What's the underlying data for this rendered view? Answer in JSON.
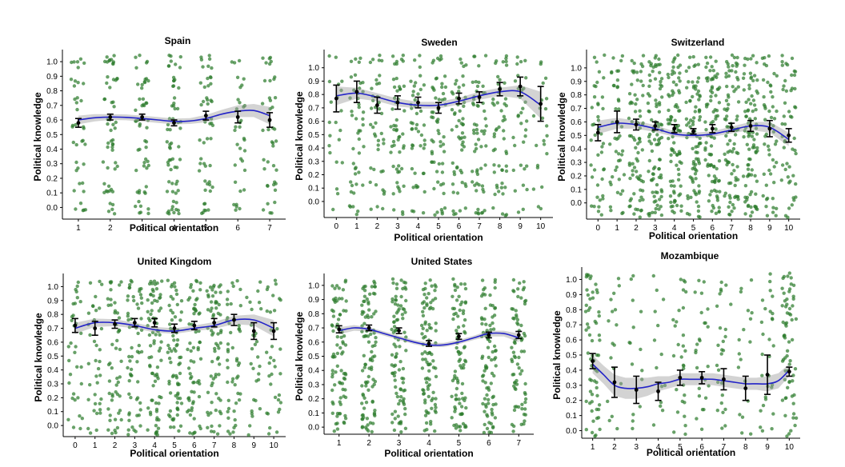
{
  "colors": {
    "point": "#2e7d2e",
    "line": "#2323c8",
    "band": "#9e9e9e",
    "errorbar": "#000000"
  },
  "chart_data": [
    {
      "type": "scatter",
      "title": "Spain",
      "xlabel": "Political orientation",
      "ylabel": "Political knowledge",
      "x_ticks": [
        1,
        2,
        3,
        4,
        5,
        6,
        7
      ],
      "y_ticks": [
        "1.0",
        "0.9",
        "0.8",
        "0.7",
        "0.6",
        "0.5",
        "0.4",
        "0.3",
        "0.2",
        "0.1",
        "0.0"
      ],
      "xlim": [
        0.5,
        7.5
      ],
      "ylim": [
        -0.08,
        1.05
      ],
      "knowledge_levels": [
        0,
        0.14,
        0.29,
        0.43,
        0.57,
        0.71,
        0.86,
        1.0
      ],
      "jitter_density": [
        0.6,
        1.0,
        0.8,
        1.0,
        0.7,
        0.5,
        0.6
      ],
      "means": [
        0.58,
        0.62,
        0.62,
        0.58,
        0.63,
        0.62,
        0.6
      ],
      "ci": [
        0.03,
        0.02,
        0.02,
        0.02,
        0.03,
        0.04,
        0.05
      ],
      "trend": {
        "x": [
          1,
          1.5,
          2,
          2.5,
          3,
          3.5,
          4,
          4.5,
          5,
          5.5,
          6,
          6.5,
          7
        ],
        "y": [
          0.6,
          0.615,
          0.62,
          0.618,
          0.61,
          0.6,
          0.59,
          0.593,
          0.61,
          0.64,
          0.66,
          0.665,
          0.63
        ],
        "band": [
          0.03,
          0.025,
          0.02,
          0.02,
          0.02,
          0.02,
          0.02,
          0.02,
          0.025,
          0.03,
          0.04,
          0.045,
          0.06
        ]
      }
    },
    {
      "type": "scatter",
      "title": "Sweden",
      "xlabel": "Political orientation",
      "ylabel": "Political knowledge",
      "x_ticks": [
        0,
        1,
        2,
        3,
        4,
        5,
        6,
        7,
        8,
        9,
        10
      ],
      "y_ticks": [
        "1.0",
        "0.9",
        "0.8",
        "0.7",
        "0.6",
        "0.5",
        "0.4",
        "0.3",
        "0.2",
        "0.1",
        "0.0"
      ],
      "xlim": [
        -0.6,
        10.6
      ],
      "ylim": [
        -0.12,
        1.1
      ],
      "knowledge_levels": [
        -0.08,
        0.1,
        0.25,
        0.4,
        0.5,
        0.6,
        0.7,
        0.8,
        0.9,
        1.05
      ],
      "jitter_density": [
        0.3,
        0.6,
        0.5,
        0.7,
        0.6,
        0.7,
        0.7,
        0.8,
        0.7,
        0.4,
        0.3
      ],
      "means": [
        0.77,
        0.82,
        0.72,
        0.74,
        0.74,
        0.7,
        0.77,
        0.78,
        0.84,
        0.86,
        0.73
      ],
      "ci": [
        0.1,
        0.08,
        0.06,
        0.05,
        0.04,
        0.04,
        0.04,
        0.04,
        0.05,
        0.07,
        0.13
      ],
      "trend": {
        "x": [
          0,
          1,
          2,
          3,
          4,
          5,
          6,
          7,
          8,
          9,
          10
        ],
        "y": [
          0.79,
          0.81,
          0.78,
          0.74,
          0.72,
          0.72,
          0.75,
          0.79,
          0.82,
          0.82,
          0.72
        ],
        "band": [
          0.07,
          0.04,
          0.03,
          0.03,
          0.025,
          0.025,
          0.025,
          0.03,
          0.03,
          0.05,
          0.1
        ]
      }
    },
    {
      "type": "scatter",
      "title": "Switzerland",
      "xlabel": "Political orientation",
      "ylabel": "Political knowledge",
      "x_ticks": [
        0,
        1,
        2,
        3,
        4,
        5,
        6,
        7,
        8,
        9,
        10
      ],
      "y_ticks": [
        "1.0",
        "0.9",
        "0.8",
        "0.7",
        "0.6",
        "0.5",
        "0.4",
        "0.3",
        "0.2",
        "0.1",
        "0.0"
      ],
      "xlim": [
        -0.6,
        10.6
      ],
      "ylim": [
        -0.12,
        1.1
      ],
      "knowledge_levels": [
        -0.06,
        0.05,
        0.17,
        0.28,
        0.4,
        0.5,
        0.6,
        0.72,
        0.83,
        0.94,
        1.05
      ],
      "jitter_density": [
        0.5,
        0.5,
        0.8,
        1.0,
        1.0,
        1.0,
        1.0,
        1.0,
        1.0,
        0.6,
        0.6
      ],
      "means": [
        0.52,
        0.6,
        0.58,
        0.57,
        0.55,
        0.53,
        0.55,
        0.56,
        0.57,
        0.55,
        0.5
      ],
      "ci": [
        0.06,
        0.08,
        0.04,
        0.03,
        0.03,
        0.02,
        0.03,
        0.03,
        0.04,
        0.06,
        0.05
      ],
      "trend": {
        "x": [
          0,
          1,
          2,
          3,
          4,
          5,
          6,
          7,
          8,
          9,
          10
        ],
        "y": [
          0.56,
          0.59,
          0.58,
          0.55,
          0.51,
          0.5,
          0.51,
          0.54,
          0.57,
          0.56,
          0.47
        ],
        "band": [
          0.05,
          0.04,
          0.03,
          0.025,
          0.02,
          0.02,
          0.02,
          0.025,
          0.03,
          0.04,
          0.05
        ]
      }
    },
    {
      "type": "scatter",
      "title": "United Kingdom",
      "xlabel": "Political orientation",
      "ylabel": "Political knowledge",
      "x_ticks": [
        0,
        1,
        2,
        3,
        4,
        5,
        6,
        7,
        8,
        9,
        10
      ],
      "y_ticks": [
        "1.0",
        "0.9",
        "0.8",
        "0.7",
        "0.6",
        "0.5",
        "0.4",
        "0.3",
        "0.2",
        "0.1",
        "0.0"
      ],
      "xlim": [
        -0.6,
        10.6
      ],
      "ylim": [
        -0.08,
        1.06
      ],
      "knowledge_levels": [
        -0.04,
        0.08,
        0.2,
        0.33,
        0.45,
        0.57,
        0.69,
        0.8,
        0.9,
        1.0
      ],
      "jitter_density": [
        0.4,
        0.5,
        0.7,
        0.8,
        0.9,
        1.0,
        0.8,
        0.8,
        0.6,
        0.4,
        0.4
      ],
      "means": [
        0.72,
        0.7,
        0.73,
        0.74,
        0.74,
        0.7,
        0.72,
        0.74,
        0.76,
        0.68,
        0.68
      ],
      "ci": [
        0.05,
        0.05,
        0.03,
        0.03,
        0.03,
        0.03,
        0.03,
        0.03,
        0.04,
        0.06,
        0.06
      ],
      "trend": {
        "x": [
          0,
          1,
          2,
          3,
          4,
          5,
          6,
          7,
          8,
          9,
          10
        ],
        "y": [
          0.7,
          0.74,
          0.74,
          0.72,
          0.69,
          0.68,
          0.7,
          0.72,
          0.76,
          0.76,
          0.7
        ],
        "band": [
          0.04,
          0.03,
          0.025,
          0.02,
          0.02,
          0.02,
          0.02,
          0.025,
          0.03,
          0.04,
          0.06
        ]
      }
    },
    {
      "type": "scatter",
      "title": "United States",
      "xlabel": "Political orientation",
      "ylabel": "Political knowledge",
      "x_ticks": [
        1,
        2,
        3,
        4,
        5,
        6,
        7
      ],
      "y_ticks": [
        "1.0",
        "0.9",
        "0.8",
        "0.7",
        "0.6",
        "0.5",
        "0.4",
        "0.3",
        "0.2",
        "0.1",
        "0.0"
      ],
      "xlim": [
        0.5,
        7.5
      ],
      "ylim": [
        -0.05,
        1.05
      ],
      "knowledge_levels": [
        0,
        0.1,
        0.2,
        0.3,
        0.4,
        0.5,
        0.6,
        0.7,
        0.8,
        0.9,
        1.0
      ],
      "jitter_density": [
        0.9,
        1.0,
        1.0,
        1.0,
        1.0,
        1.0,
        0.8
      ],
      "means": [
        0.69,
        0.7,
        0.68,
        0.59,
        0.64,
        0.65,
        0.65
      ],
      "ci": [
        0.025,
        0.02,
        0.02,
        0.02,
        0.02,
        0.02,
        0.025
      ],
      "trend": {
        "x": [
          1,
          1.5,
          2,
          2.5,
          3,
          3.5,
          4,
          4.5,
          5,
          5.5,
          6,
          6.5,
          7
        ],
        "y": [
          0.68,
          0.7,
          0.69,
          0.66,
          0.63,
          0.6,
          0.58,
          0.58,
          0.6,
          0.63,
          0.66,
          0.66,
          0.63
        ],
        "band": [
          0.025,
          0.02,
          0.015,
          0.015,
          0.015,
          0.015,
          0.015,
          0.015,
          0.015,
          0.015,
          0.02,
          0.02,
          0.03
        ]
      }
    },
    {
      "type": "scatter",
      "title": "Mozambique",
      "xlabel": "Political orientation",
      "ylabel": "Political knowledge",
      "x_ticks": [
        1,
        2,
        3,
        4,
        5,
        6,
        7,
        8,
        9,
        10
      ],
      "y_ticks": [
        "1.0",
        "0.9",
        "0.8",
        "0.7",
        "0.6",
        "0.5",
        "0.4",
        "0.3",
        "0.2",
        "0.1",
        "0.0"
      ],
      "xlim": [
        0.5,
        10.5
      ],
      "ylim": [
        -0.05,
        1.05
      ],
      "knowledge_levels": [
        0,
        0.1,
        0.2,
        0.3,
        0.4,
        0.5,
        0.6,
        0.7,
        0.8,
        0.9,
        1.0
      ],
      "jitter_density": [
        0.7,
        0.2,
        0.15,
        0.15,
        0.3,
        0.3,
        0.3,
        0.2,
        0.3,
        0.8
      ],
      "means": [
        0.46,
        0.32,
        0.27,
        0.26,
        0.35,
        0.35,
        0.34,
        0.28,
        0.37,
        0.39
      ],
      "ci": [
        0.05,
        0.1,
        0.09,
        0.06,
        0.05,
        0.04,
        0.07,
        0.08,
        0.13,
        0.03
      ],
      "trend": {
        "x": [
          1,
          1.5,
          2,
          2.5,
          3,
          3.5,
          4,
          4.5,
          5,
          5.5,
          6,
          6.5,
          7,
          7.5,
          8,
          8.5,
          9,
          9.5,
          10
        ],
        "y": [
          0.44,
          0.37,
          0.3,
          0.28,
          0.28,
          0.29,
          0.31,
          0.32,
          0.34,
          0.34,
          0.34,
          0.34,
          0.33,
          0.32,
          0.31,
          0.31,
          0.31,
          0.33,
          0.4
        ],
        "band": [
          0.06,
          0.06,
          0.07,
          0.07,
          0.07,
          0.06,
          0.05,
          0.04,
          0.04,
          0.04,
          0.04,
          0.04,
          0.04,
          0.04,
          0.04,
          0.04,
          0.05,
          0.05,
          0.04
        ]
      }
    }
  ]
}
